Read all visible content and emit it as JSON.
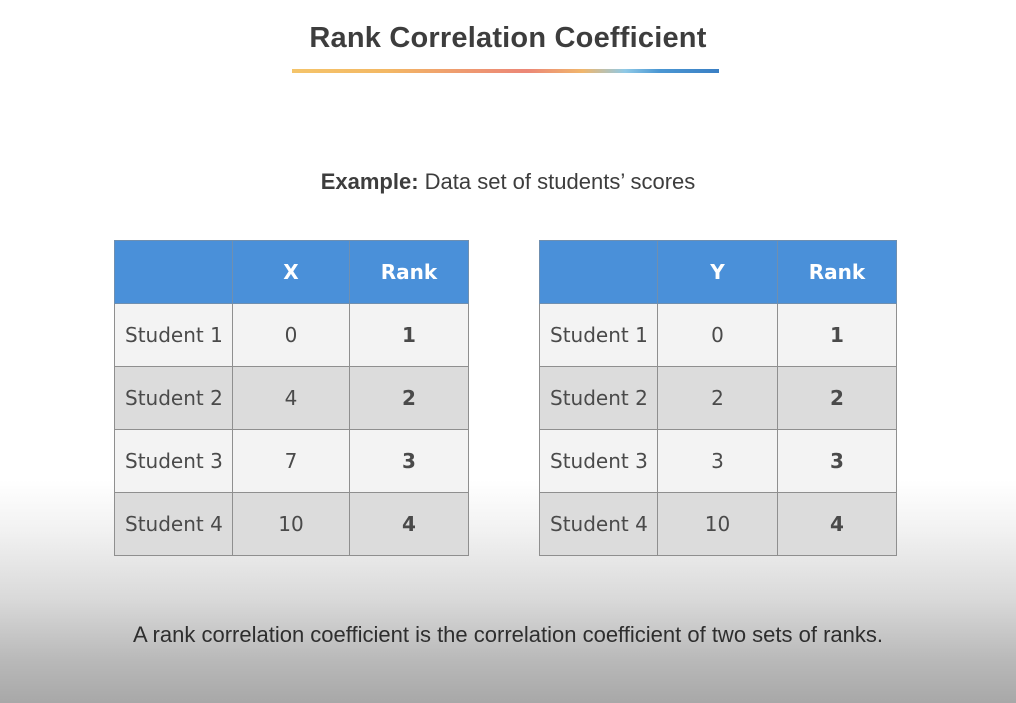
{
  "title": "Rank Correlation Coefficient",
  "subtitle": {
    "bold": "Example:",
    "text": " Data set of students’ scores"
  },
  "table_x": {
    "headers": [
      "",
      "X",
      "Rank"
    ],
    "rows": [
      {
        "label": "Student 1",
        "value": "0",
        "rank": "1"
      },
      {
        "label": "Student 2",
        "value": "4",
        "rank": "2"
      },
      {
        "label": "Student 3",
        "value": "7",
        "rank": "3"
      },
      {
        "label": "Student 4",
        "value": "10",
        "rank": "4"
      }
    ]
  },
  "table_y": {
    "headers": [
      "",
      "Y",
      "Rank"
    ],
    "rows": [
      {
        "label": "Student 1",
        "value": "0",
        "rank": "1"
      },
      {
        "label": "Student 2",
        "value": "2",
        "rank": "2"
      },
      {
        "label": "Student 3",
        "value": "3",
        "rank": "3"
      },
      {
        "label": "Student 4",
        "value": "10",
        "rank": "4"
      }
    ]
  },
  "footer": "A rank correlation coefficient is the correlation coefficient of two sets of ranks.",
  "colors": {
    "header_blue": "#4a90d9",
    "row_light": "#f3f3f3",
    "row_dark": "#dcdcdc"
  }
}
